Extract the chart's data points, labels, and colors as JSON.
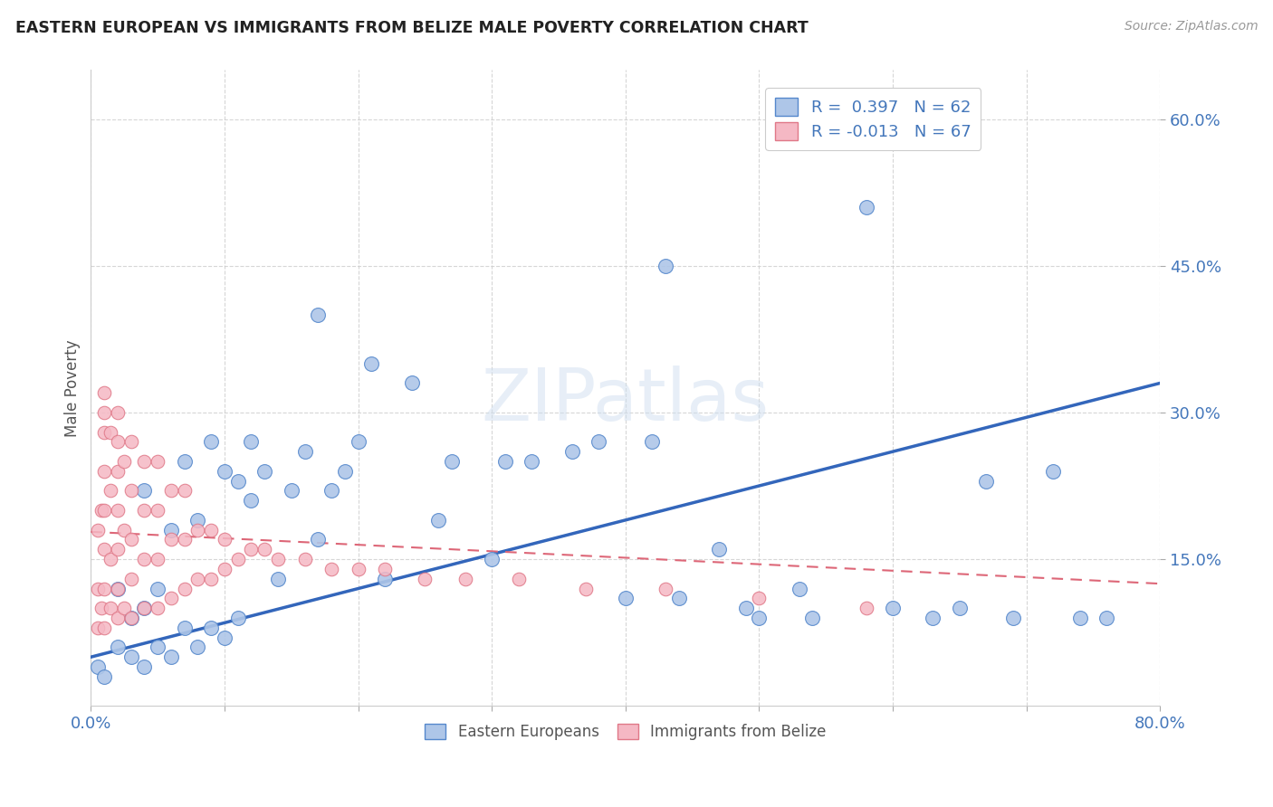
{
  "title": "EASTERN EUROPEAN VS IMMIGRANTS FROM BELIZE MALE POVERTY CORRELATION CHART",
  "source_text": "Source: ZipAtlas.com",
  "ylabel": "Male Poverty",
  "watermark": "ZIPatlas",
  "xlim": [
    0.0,
    0.8
  ],
  "ylim": [
    0.0,
    0.65
  ],
  "xticks": [
    0.0,
    0.1,
    0.2,
    0.3,
    0.4,
    0.5,
    0.6,
    0.7,
    0.8
  ],
  "xticklabels": [
    "0.0%",
    "",
    "",
    "",
    "",
    "",
    "",
    "",
    "80.0%"
  ],
  "ytick_positions": [
    0.15,
    0.3,
    0.45,
    0.6
  ],
  "ytick_labels": [
    "15.0%",
    "30.0%",
    "45.0%",
    "60.0%"
  ],
  "series1_color": "#aec6e8",
  "series1_edge": "#5588cc",
  "series2_color": "#f5b8c4",
  "series2_edge": "#e07888",
  "trend1_color": "#3366bb",
  "trend2_color": "#dd6677",
  "background_color": "#ffffff",
  "grid_color": "#cccccc",
  "title_color": "#222222",
  "axis_color": "#4477bb",
  "trend1_x0": 0.0,
  "trend1_y0": 0.05,
  "trend1_x1": 0.8,
  "trend1_y1": 0.33,
  "trend2_x0": 0.0,
  "trend2_y0": 0.178,
  "trend2_x1": 0.8,
  "trend2_y1": 0.125,
  "eastern_x": [
    0.005,
    0.01,
    0.02,
    0.02,
    0.03,
    0.03,
    0.04,
    0.04,
    0.04,
    0.05,
    0.05,
    0.06,
    0.06,
    0.07,
    0.07,
    0.08,
    0.08,
    0.09,
    0.09,
    0.1,
    0.1,
    0.11,
    0.11,
    0.12,
    0.12,
    0.13,
    0.14,
    0.15,
    0.16,
    0.17,
    0.17,
    0.18,
    0.19,
    0.2,
    0.21,
    0.22,
    0.24,
    0.26,
    0.27,
    0.3,
    0.31,
    0.33,
    0.36,
    0.38,
    0.4,
    0.42,
    0.43,
    0.44,
    0.47,
    0.49,
    0.5,
    0.53,
    0.54,
    0.58,
    0.6,
    0.63,
    0.65,
    0.67,
    0.69,
    0.72,
    0.74,
    0.76
  ],
  "eastern_y": [
    0.04,
    0.03,
    0.06,
    0.12,
    0.05,
    0.09,
    0.04,
    0.1,
    0.22,
    0.06,
    0.12,
    0.05,
    0.18,
    0.08,
    0.25,
    0.06,
    0.19,
    0.08,
    0.27,
    0.07,
    0.24,
    0.09,
    0.23,
    0.21,
    0.27,
    0.24,
    0.13,
    0.22,
    0.26,
    0.17,
    0.4,
    0.22,
    0.24,
    0.27,
    0.35,
    0.13,
    0.33,
    0.19,
    0.25,
    0.15,
    0.25,
    0.25,
    0.26,
    0.27,
    0.11,
    0.27,
    0.45,
    0.11,
    0.16,
    0.1,
    0.09,
    0.12,
    0.09,
    0.51,
    0.1,
    0.09,
    0.1,
    0.23,
    0.09,
    0.24,
    0.09,
    0.09
  ],
  "belize_x": [
    0.005,
    0.005,
    0.005,
    0.008,
    0.008,
    0.01,
    0.01,
    0.01,
    0.01,
    0.01,
    0.01,
    0.01,
    0.01,
    0.015,
    0.015,
    0.015,
    0.015,
    0.02,
    0.02,
    0.02,
    0.02,
    0.02,
    0.02,
    0.02,
    0.025,
    0.025,
    0.025,
    0.03,
    0.03,
    0.03,
    0.03,
    0.03,
    0.04,
    0.04,
    0.04,
    0.04,
    0.05,
    0.05,
    0.05,
    0.05,
    0.06,
    0.06,
    0.06,
    0.07,
    0.07,
    0.07,
    0.08,
    0.08,
    0.09,
    0.09,
    0.1,
    0.1,
    0.11,
    0.12,
    0.13,
    0.14,
    0.16,
    0.18,
    0.2,
    0.22,
    0.25,
    0.28,
    0.32,
    0.37,
    0.43,
    0.5,
    0.58
  ],
  "belize_y": [
    0.08,
    0.12,
    0.18,
    0.1,
    0.2,
    0.08,
    0.12,
    0.16,
    0.2,
    0.24,
    0.28,
    0.3,
    0.32,
    0.1,
    0.15,
    0.22,
    0.28,
    0.09,
    0.12,
    0.16,
    0.2,
    0.24,
    0.27,
    0.3,
    0.1,
    0.18,
    0.25,
    0.09,
    0.13,
    0.17,
    0.22,
    0.27,
    0.1,
    0.15,
    0.2,
    0.25,
    0.1,
    0.15,
    0.2,
    0.25,
    0.11,
    0.17,
    0.22,
    0.12,
    0.17,
    0.22,
    0.13,
    0.18,
    0.13,
    0.18,
    0.14,
    0.17,
    0.15,
    0.16,
    0.16,
    0.15,
    0.15,
    0.14,
    0.14,
    0.14,
    0.13,
    0.13,
    0.13,
    0.12,
    0.12,
    0.11,
    0.1
  ]
}
